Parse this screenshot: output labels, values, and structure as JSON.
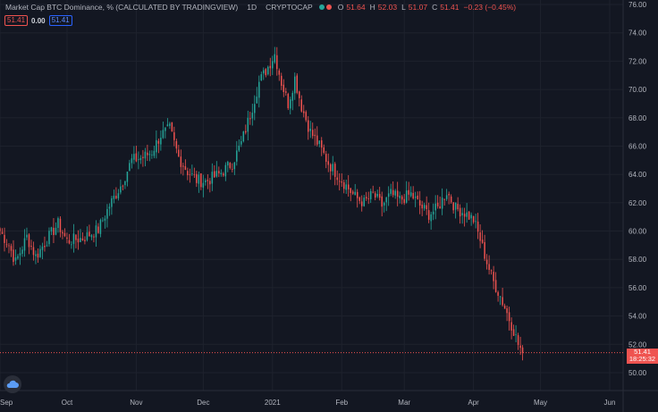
{
  "legend": {
    "title": "Market Cap BTC Dominance, % (CALCULATED BY TRADINGVIEW)",
    "interval": "1D",
    "exchange": "CRYPTOCAP",
    "dot_colors": [
      "#26a69a",
      "#ef5350"
    ],
    "o_label": "O",
    "o_value": "51.64",
    "h_label": "H",
    "h_value": "52.03",
    "l_label": "L",
    "l_value": "51.07",
    "c_label": "C",
    "c_value": "51.41",
    "change": "−0.23 (−0.45%)"
  },
  "indicator_badges": {
    "left_value": "51.41",
    "middle_value": "0.00",
    "right_value": "51.41"
  },
  "price_tag": {
    "price": "51.41",
    "countdown": "18:25:32"
  },
  "colors": {
    "background": "#131722",
    "up": "#26a69a",
    "down": "#ef5350",
    "grid": "#1e222d",
    "axis_text": "#b2b5be"
  },
  "logo_icon": "tradingview-cloud-icon",
  "chart_data": {
    "type": "candlestick",
    "y_axis_side": "right",
    "ylim": [
      49,
      76
    ],
    "yticks": [
      "50.00",
      "52.00",
      "54.00",
      "56.00",
      "58.00",
      "60.00",
      "62.00",
      "64.00",
      "66.00",
      "68.00",
      "70.00",
      "72.00",
      "74.00",
      "76.00"
    ],
    "ytick_values": [
      50,
      52,
      54,
      56,
      58,
      60,
      62,
      64,
      66,
      68,
      70,
      72,
      74,
      76
    ],
    "x_start": "2020-09-01",
    "x_end": "2021-06-07",
    "xticks": [
      "Sep",
      "Oct",
      "Nov",
      "Dec",
      "2021",
      "Feb",
      "Mar",
      "Apr",
      "May",
      "Jun"
    ],
    "xtick_dates": [
      "2020-09-01",
      "2020-10-01",
      "2020-11-01",
      "2020-12-01",
      "2021-01-01",
      "2021-02-01",
      "2021-03-01",
      "2021-04-01",
      "2021-05-01",
      "2021-06-01"
    ],
    "last_price": 51.41,
    "last_date": "2021-04-23",
    "price_line": true,
    "close_path": [
      [
        "2020-09-01",
        60.0
      ],
      [
        "2020-09-05",
        59.0
      ],
      [
        "2020-09-08",
        57.8
      ],
      [
        "2020-09-13",
        59.6
      ],
      [
        "2020-09-17",
        58.2
      ],
      [
        "2020-09-22",
        59.4
      ],
      [
        "2020-09-27",
        60.5
      ],
      [
        "2020-10-01",
        59.3
      ],
      [
        "2020-10-08",
        59.5
      ],
      [
        "2020-10-15",
        60.1
      ],
      [
        "2020-10-20",
        61.8
      ],
      [
        "2020-10-25",
        63.2
      ],
      [
        "2020-10-30",
        65.0
      ],
      [
        "2020-11-04",
        65.2
      ],
      [
        "2020-11-08",
        65.6
      ],
      [
        "2020-11-12",
        66.8
      ],
      [
        "2020-11-16",
        67.2
      ],
      [
        "2020-11-20",
        65.2
      ],
      [
        "2020-11-24",
        64.2
      ],
      [
        "2020-11-28",
        63.6
      ],
      [
        "2020-12-02",
        63.5
      ],
      [
        "2020-12-08",
        64.0
      ],
      [
        "2020-12-14",
        64.8
      ],
      [
        "2020-12-18",
        66.2
      ],
      [
        "2020-12-22",
        68.2
      ],
      [
        "2020-12-26",
        70.5
      ],
      [
        "2020-12-30",
        71.6
      ],
      [
        "2021-01-02",
        72.5
      ],
      [
        "2021-01-05",
        70.5
      ],
      [
        "2021-01-08",
        69.0
      ],
      [
        "2021-01-11",
        70.8
      ],
      [
        "2021-01-14",
        68.8
      ],
      [
        "2021-01-18",
        67.0
      ],
      [
        "2021-01-22",
        66.0
      ],
      [
        "2021-01-26",
        64.8
      ],
      [
        "2021-01-30",
        64.0
      ],
      [
        "2021-02-03",
        63.2
      ],
      [
        "2021-02-07",
        62.4
      ],
      [
        "2021-02-11",
        62.0
      ],
      [
        "2021-02-15",
        62.6
      ],
      [
        "2021-02-19",
        61.8
      ],
      [
        "2021-02-23",
        62.6
      ],
      [
        "2021-02-27",
        62.2
      ],
      [
        "2021-03-04",
        62.6
      ],
      [
        "2021-03-08",
        61.8
      ],
      [
        "2021-03-12",
        61.2
      ],
      [
        "2021-03-16",
        61.6
      ],
      [
        "2021-03-20",
        62.8
      ],
      [
        "2021-03-24",
        61.6
      ],
      [
        "2021-03-28",
        61.3
      ],
      [
        "2021-04-01",
        60.8
      ],
      [
        "2021-04-04",
        59.4
      ],
      [
        "2021-04-07",
        57.8
      ],
      [
        "2021-04-10",
        56.4
      ],
      [
        "2021-04-13",
        55.4
      ],
      [
        "2021-04-16",
        54.2
      ],
      [
        "2021-04-19",
        53.0
      ],
      [
        "2021-04-21",
        52.0
      ],
      [
        "2021-04-23",
        51.41
      ]
    ]
  }
}
